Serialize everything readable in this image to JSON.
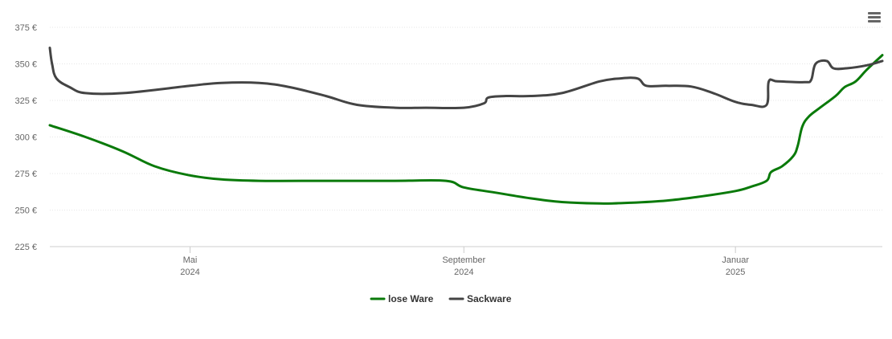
{
  "chart_data": {
    "type": "line",
    "title": "",
    "xlabel": "",
    "ylabel": "",
    "x_range": [
      "2024-02-28",
      "2025-03-08"
    ],
    "ylim": [
      225,
      375
    ],
    "y_ticks": [
      225,
      250,
      275,
      300,
      325,
      350,
      375
    ],
    "y_tick_labels": [
      "225 €",
      "250 €",
      "275 €",
      "300 €",
      "325 €",
      "350 €",
      "375 €"
    ],
    "x_ticks": [
      {
        "date": "2024-05-01",
        "month": "Mai",
        "year": "2024"
      },
      {
        "date": "2024-09-01",
        "month": "September",
        "year": "2024"
      },
      {
        "date": "2025-01-01",
        "month": "Januar",
        "year": "2025"
      }
    ],
    "grid": true,
    "legend_position": "bottom-center",
    "series": [
      {
        "name": "lose Ware",
        "color": "#0a7a0a",
        "points": [
          [
            "2024-02-28",
            308
          ],
          [
            "2024-03-15",
            300
          ],
          [
            "2024-04-01",
            290
          ],
          [
            "2024-04-15",
            280
          ],
          [
            "2024-04-30",
            274
          ],
          [
            "2024-05-15",
            271
          ],
          [
            "2024-06-01",
            270
          ],
          [
            "2024-07-01",
            270
          ],
          [
            "2024-08-01",
            270
          ],
          [
            "2024-08-24",
            270
          ],
          [
            "2024-09-01",
            265.5
          ],
          [
            "2024-09-15",
            262
          ],
          [
            "2024-10-01",
            258
          ],
          [
            "2024-10-15",
            255.5
          ],
          [
            "2024-11-01",
            254.5
          ],
          [
            "2024-11-15",
            255
          ],
          [
            "2024-12-01",
            256.5
          ],
          [
            "2024-12-15",
            259
          ],
          [
            "2025-01-01",
            263
          ],
          [
            "2025-01-08",
            266
          ],
          [
            "2025-01-15",
            270
          ],
          [
            "2025-01-17",
            276
          ],
          [
            "2025-01-22",
            280
          ],
          [
            "2025-01-27",
            287
          ],
          [
            "2025-01-29",
            294
          ],
          [
            "2025-01-31",
            307
          ],
          [
            "2025-02-03",
            314
          ],
          [
            "2025-02-08",
            320
          ],
          [
            "2025-02-15",
            328
          ],
          [
            "2025-02-19",
            334
          ],
          [
            "2025-02-24",
            338
          ],
          [
            "2025-03-01",
            346
          ],
          [
            "2025-03-08",
            356
          ]
        ]
      },
      {
        "name": "Sackware",
        "color": "#444444",
        "points": [
          [
            "2024-02-28",
            361
          ],
          [
            "2024-02-29",
            350
          ],
          [
            "2024-03-02",
            340
          ],
          [
            "2024-03-08",
            334
          ],
          [
            "2024-03-15",
            330
          ],
          [
            "2024-04-01",
            330
          ],
          [
            "2024-05-01",
            335
          ],
          [
            "2024-05-15",
            337
          ],
          [
            "2024-06-01",
            337
          ],
          [
            "2024-06-15",
            334
          ],
          [
            "2024-07-01",
            328
          ],
          [
            "2024-07-15",
            322
          ],
          [
            "2024-08-01",
            320
          ],
          [
            "2024-08-15",
            320
          ],
          [
            "2024-09-01",
            320
          ],
          [
            "2024-09-10",
            323
          ],
          [
            "2024-09-12",
            327
          ],
          [
            "2024-09-20",
            328
          ],
          [
            "2024-10-01",
            328
          ],
          [
            "2024-10-15",
            330
          ],
          [
            "2024-11-01",
            338
          ],
          [
            "2024-11-10",
            340
          ],
          [
            "2024-11-18",
            340
          ],
          [
            "2024-11-22",
            335
          ],
          [
            "2024-12-01",
            335
          ],
          [
            "2024-12-12",
            334.5
          ],
          [
            "2024-12-22",
            330
          ],
          [
            "2025-01-01",
            324
          ],
          [
            "2025-01-08",
            322
          ],
          [
            "2025-01-15",
            322
          ],
          [
            "2025-01-16",
            338
          ],
          [
            "2025-01-20",
            338
          ],
          [
            "2025-02-01",
            337.5
          ],
          [
            "2025-02-04",
            339
          ],
          [
            "2025-02-06",
            350
          ],
          [
            "2025-02-11",
            352
          ],
          [
            "2025-02-14",
            347
          ],
          [
            "2025-02-20",
            347
          ],
          [
            "2025-03-01",
            349
          ],
          [
            "2025-03-08",
            352
          ]
        ]
      }
    ]
  },
  "menu": {
    "icon": "hamburger-menu-icon"
  }
}
